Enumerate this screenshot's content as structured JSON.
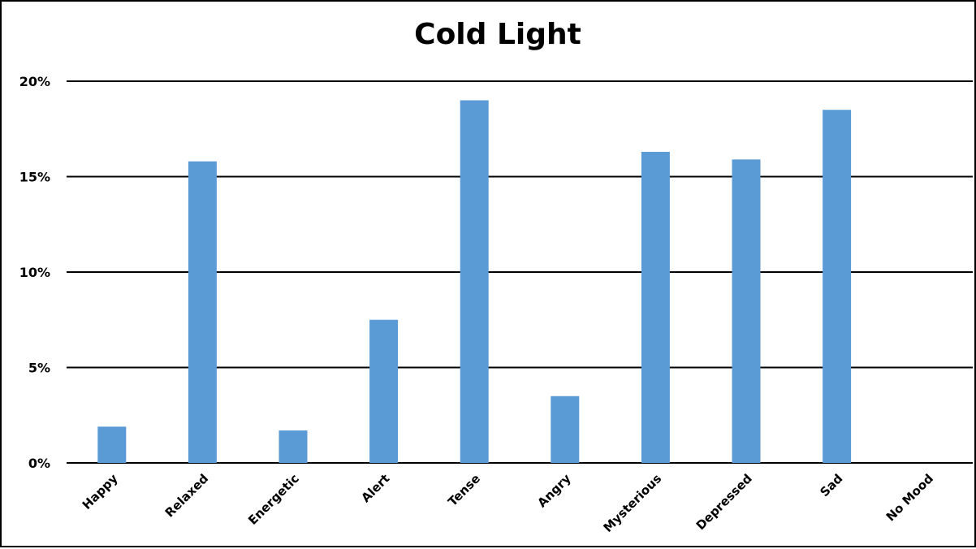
{
  "chart_data": {
    "type": "bar",
    "title": "Cold Light",
    "xlabel": "",
    "ylabel": "",
    "categories": [
      "Happy",
      "Relaxed",
      "Energetic",
      "Alert",
      "Tense",
      "Angry",
      "Mysterious",
      "Depressed",
      "Sad",
      "No Mood"
    ],
    "values": [
      1.9,
      15.8,
      1.7,
      7.5,
      19.0,
      3.5,
      16.3,
      15.9,
      18.5,
      0
    ],
    "ylim": [
      0,
      20
    ],
    "y_ticks": [
      "0%",
      "5%",
      "10%",
      "15%",
      "20%"
    ],
    "y_tick_values": [
      0,
      5,
      10,
      15,
      20
    ],
    "grid": true,
    "legend": "none",
    "bar_color": "#5B9BD5"
  }
}
